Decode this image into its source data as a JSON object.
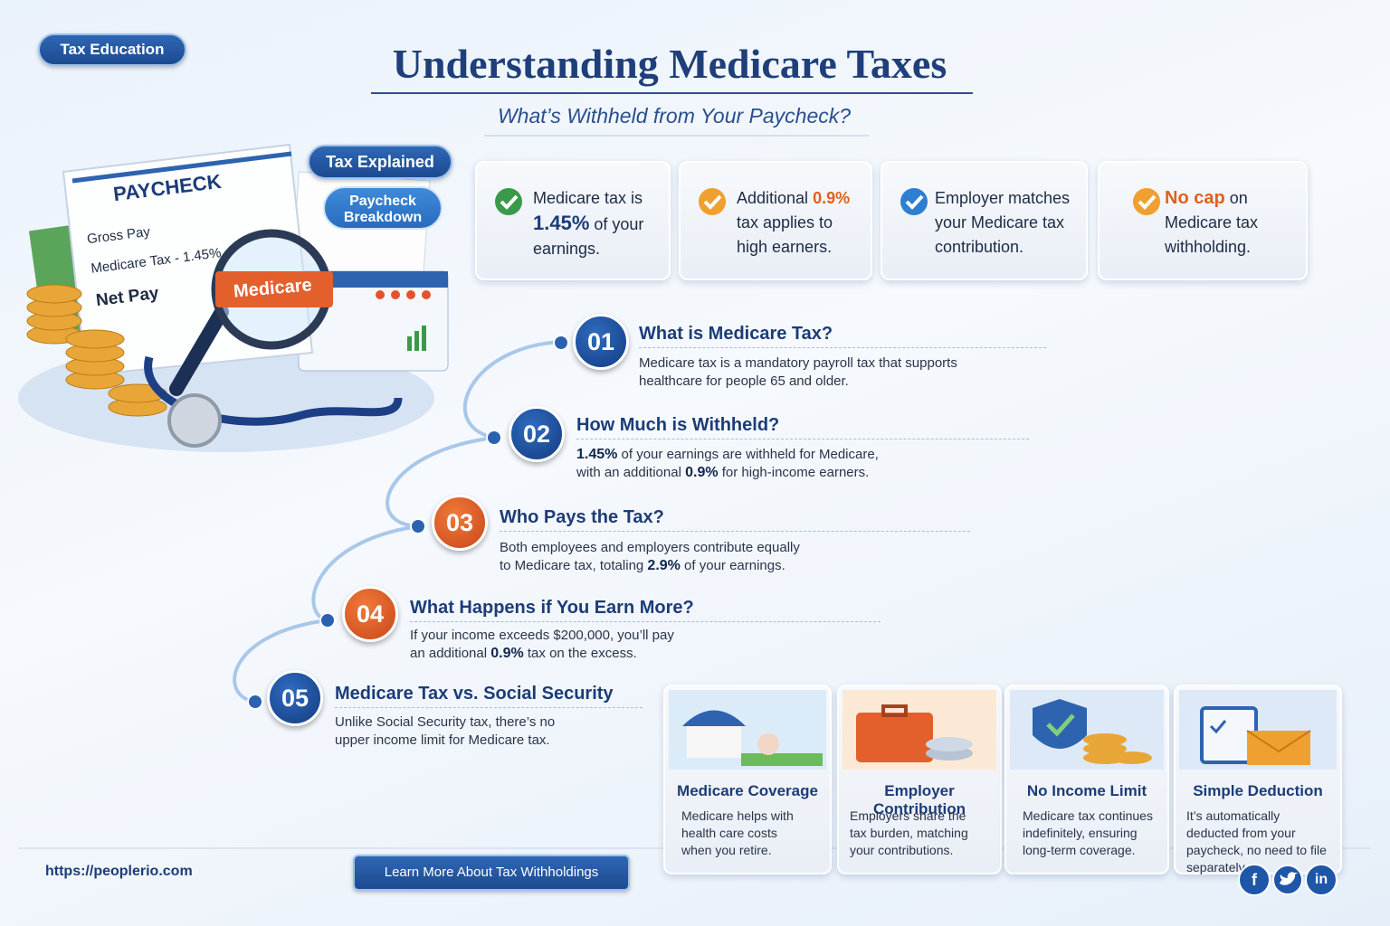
{
  "badge": "Tax Education",
  "header": {
    "title": "Understanding Medicare Taxes",
    "subtitle": "What’s Withheld from Your Paycheck?"
  },
  "illustration": {
    "paycheck_title": "PAYCHECK",
    "gross": "Gross Pay",
    "medicare_line": "Medicare Tax - 1.45%",
    "net": "Net Pay",
    "magnifier": "Medicare",
    "tag1": "Tax Explained",
    "tag2": "Paycheck Breakdown"
  },
  "highlights": [
    {
      "parts": [
        "Medicare tax is ",
        "1.45%",
        " of your earnings."
      ]
    },
    {
      "parts": [
        "Additional ",
        "0.9%",
        " tax applies to high earners."
      ]
    },
    {
      "parts": [
        "Employer matches your Medicare tax contribution."
      ]
    },
    {
      "parts": [
        "No cap",
        " on Medicare tax withholding."
      ]
    }
  ],
  "steps": [
    {
      "number": "01",
      "title": "What is Medicare Tax?",
      "body": [
        "Medicare tax is a mandatory payroll tax that supports healthcare for people 65 and older."
      ]
    },
    {
      "number": "02",
      "title": "How Much is Withheld?",
      "body": [
        "1.45%",
        " of your earnings are withheld for Medicare, with an additional ",
        "0.9%",
        " for high-income earners."
      ]
    },
    {
      "number": "03",
      "title": "Who Pays the Tax?",
      "body": [
        "Both employees and employers contribute equally to Medicare tax, totaling ",
        "2.9%",
        " of your earnings."
      ]
    },
    {
      "number": "04",
      "title": "What Happens if You Earn More?",
      "body": [
        "If your income exceeds $200,000, you’ll pay an additional ",
        "0.9%",
        " tax on the excess."
      ]
    },
    {
      "number": "05",
      "title": "Medicare Tax vs. Social Security",
      "body": [
        "Unlike Social Security tax, there’s no upper income limit for Medicare tax."
      ]
    }
  ],
  "features": [
    {
      "title": "Medicare Coverage",
      "text": "Medicare helps with health care costs when you retire."
    },
    {
      "title": "Employer Contribution",
      "text": "Employers share the tax burden, matching your contributions."
    },
    {
      "title": "No Income Limit",
      "text": "Medicare tax continues indefinitely, ensuring long-term coverage."
    },
    {
      "title": "Simple Deduction",
      "text": "It’s automatically deducted from your paycheck, no need to file separately."
    }
  ],
  "footer": {
    "url": "https://peoplerio.com",
    "button": "Learn More About Tax Withholdings",
    "social": {
      "facebook": "f",
      "linkedin": "in"
    }
  }
}
